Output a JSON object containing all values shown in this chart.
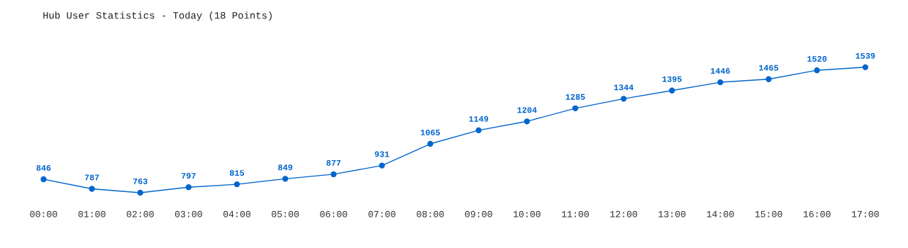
{
  "chart_data": {
    "type": "line",
    "title": "Hub User Statistics - Today (18 Points)",
    "categories": [
      "00:00",
      "01:00",
      "02:00",
      "03:00",
      "04:00",
      "05:00",
      "06:00",
      "07:00",
      "08:00",
      "09:00",
      "10:00",
      "11:00",
      "12:00",
      "13:00",
      "14:00",
      "15:00",
      "16:00",
      "17:00"
    ],
    "series": [
      {
        "color": "#0066cc",
        "values": [
          846,
          787,
          763,
          797,
          815,
          849,
          877,
          931,
          1065,
          1149,
          1204,
          1285,
          1344,
          1395,
          1446,
          1465,
          1520,
          1539
        ]
      }
    ],
    "data_labels": true,
    "marker": "circle",
    "grid": false,
    "legend": false,
    "tick_labels": "x"
  }
}
